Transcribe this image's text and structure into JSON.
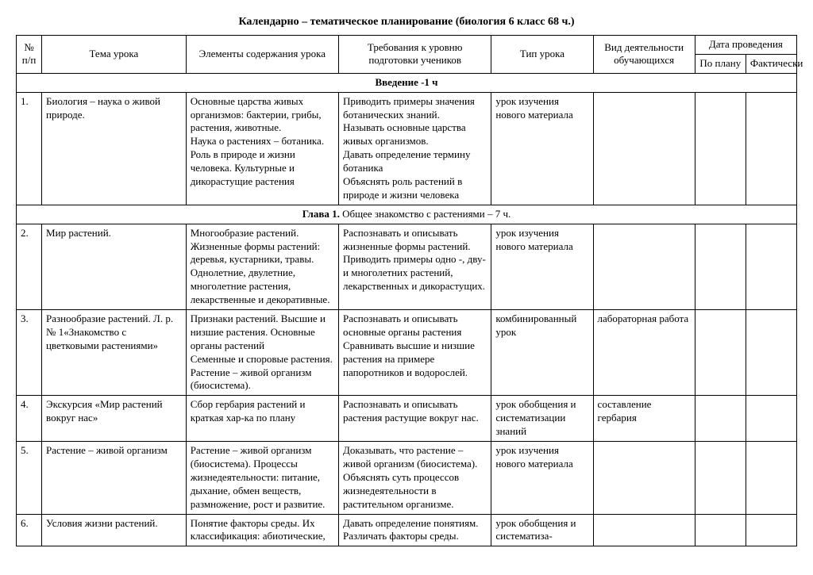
{
  "title": "Календарно – тематическое планирование (биология 6 класс 68 ч.)",
  "headers": {
    "num": "№ п/п",
    "tema": "Тема урока",
    "elem": "Элементы содержания урока",
    "treb": "Требования к уровню подготовки учеников",
    "tip": "Тип урока",
    "vid": "Вид деятельности обучающихся",
    "data_group": "Дата проведения",
    "plan": "По плану",
    "fact": "Фактически"
  },
  "section1": "Введение  -1 ч",
  "row1": {
    "num": "1.",
    "tema": "Биология – наука о живой природе.",
    "elem": "Основные царства живых организмов: бактерии, грибы, растения, животные.\nНаука о растениях – ботаника. Роль в природе и жизни человека. Культурные и дикорастущие растения",
    "treb": "Приводить примеры значения ботанических знаний.\nНазывать основные царства живых организмов.\nДавать определение термину ботаника\nОбъяснять роль растений в природе и жизни человека",
    "tip": "урок изучения нового материала",
    "vid": "",
    "plan": "",
    "fact": ""
  },
  "section2_bold": "Глава 1.",
  "section2_rest": " Общее знакомство с растениями – 7 ч.",
  "row2": {
    "num": "2.",
    "tema": "Мир растений.",
    "elem": "Многообразие растений. Жизненные формы растений: деревья, кустарники, травы. Однолетние, двулетние, многолетние растения, лекарственные и декоративные.",
    "treb": "Распознавать и описывать жизненные формы растений. Приводить примеры одно -, дву- и многолетних растений, лекарственных и дикорастущих.",
    "tip": "урок изучения нового материала",
    "vid": "",
    "plan": "",
    "fact": ""
  },
  "row3": {
    "num": "3.",
    "tema": "Разнообразие растений. Л. р. № 1«Знакомство с цветковыми растениями»",
    "elem": "Признаки растений. Высшие и низшие растения. Основные органы растений\nСеменные и споровые растения. Растение – живой организм (биосистема).",
    "treb": "Распознавать и описывать основные органы растения\nСравнивать высшие и низшие растения на примере папоротников и водорослей.",
    "tip": "комбинированный урок",
    "vid": "лабораторная работа",
    "plan": "",
    "fact": ""
  },
  "row4": {
    "num": "4.",
    "tema": "Экскурсия «Мир растений вокруг нас»",
    "elem": "Сбор гербария растений и краткая хар-ка по плану",
    "treb": "Распознавать и описывать растения растущие вокруг нас.",
    "tip": "урок обобщения и систематизации знаний",
    "vid": "составление гербария",
    "plan": "",
    "fact": ""
  },
  "row5": {
    "num": "5.",
    "tema": "Растение – живой организм",
    "elem": "Растение – живой организм (биосистема). Процессы жизнедеятельности: питание, дыхание, обмен веществ, размножение, рост и развитие.",
    "treb": "Доказывать, что растение – живой организм (биосистема). Объяснять суть процессов жизнедеятельности в растительном организме.",
    "tip": "урок изучения нового материала",
    "vid": "",
    "plan": "",
    "fact": ""
  },
  "row6": {
    "num": "6.",
    "tema": "Условия жизни растений.",
    "elem": "Понятие факторы среды. Их классификация: абиотические,",
    "treb": "Давать определение понятиям. Различать факторы среды.",
    "tip": "урок обобщения и систематиза-",
    "vid": "",
    "plan": "",
    "fact": ""
  }
}
